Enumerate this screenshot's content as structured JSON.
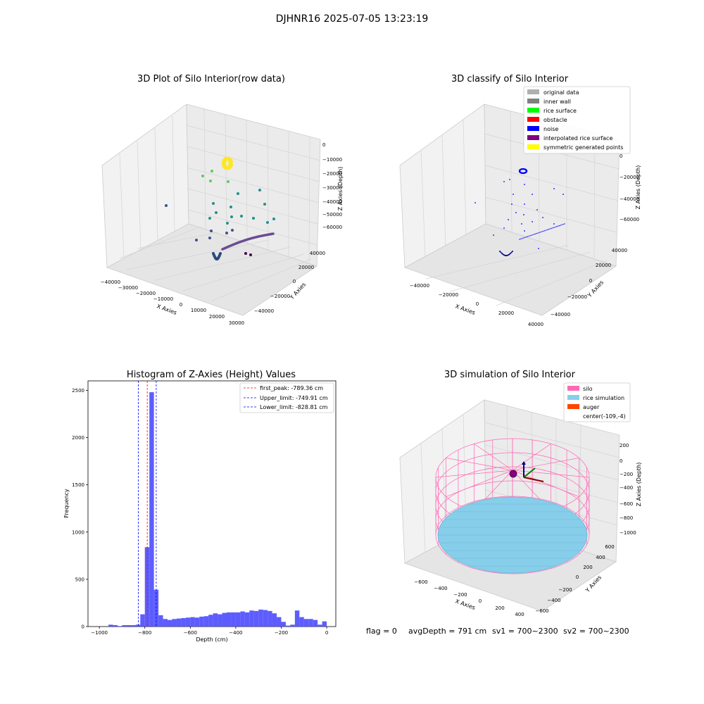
{
  "figure": {
    "suptitle": "DJHNR16 2025-07-05 13:23:19",
    "footer": {
      "flag": "flag = 0",
      "avg_depth": "avgDepth = 791 cm",
      "sv1": "sv1 = 700~2300",
      "sv2": "sv2 = 700~2300"
    }
  },
  "colors": {
    "histogram_bars": "#4b4bff",
    "first_peak_line": "#ff0000",
    "limit_lines": "#0000ff",
    "grid": "#d9d9d9",
    "pane": "#f2f2f2",
    "silo": "#ff69b4",
    "rice": "#87ceeb",
    "auger": "#ff4500"
  },
  "chart_data": [
    {
      "type": "scatter",
      "title": "3D Plot of Silo Interior(row data)",
      "xlabel": "X Axies",
      "ylabel": "Y Axies",
      "zlabel": "Z Axies (Depth)",
      "x_ticks": [
        "−40000",
        "−30000",
        "−20000",
        "−10000",
        "0",
        "10000",
        "20000",
        "30000"
      ],
      "y_ticks": [
        "−40000",
        "−20000",
        "0",
        "20000",
        "40000"
      ],
      "z_ticks": [
        "0",
        "−10000",
        "−20000",
        "−30000",
        "−40000",
        "−50000",
        "−60000"
      ],
      "colormap": "viridis (by depth)"
    },
    {
      "type": "scatter",
      "title": "3D classify of Silo Interior",
      "xlabel": "X Axies",
      "ylabel": "Y Axies",
      "zlabel": "Z Axies (Depth)",
      "x_ticks": [
        "−40000",
        "−20000",
        "0",
        "20000",
        "40000"
      ],
      "y_ticks": [
        "−40000",
        "−20000",
        "0",
        "20000",
        "40000"
      ],
      "z_ticks": [
        "0",
        "−20000",
        "−40000",
        "−60000"
      ],
      "legend": [
        {
          "label": "original data",
          "color": "#b0b0b0"
        },
        {
          "label": "inner wall",
          "color": "#808080"
        },
        {
          "label": "rice surface",
          "color": "#00ff00"
        },
        {
          "label": "obstacle",
          "color": "#ff0000"
        },
        {
          "label": "noise",
          "color": "#0000ff"
        },
        {
          "label": "interpolated rice surface",
          "color": "#800080"
        },
        {
          "label": "symmetric generated points",
          "color": "#ffff00"
        }
      ]
    },
    {
      "type": "bar",
      "title": "Histogram of Z-Axies (Height) Values",
      "xlabel": "Depth (cm)",
      "ylabel": "Frequency",
      "xlim": [
        -1050,
        40
      ],
      "ylim": [
        0,
        2600
      ],
      "x_ticks": [
        -1000,
        -800,
        -600,
        -400,
        -200,
        0
      ],
      "x_tick_labels": [
        "−1000",
        "−800",
        "−600",
        "−400",
        "−200",
        "0"
      ],
      "y_ticks": [
        0,
        500,
        1000,
        1500,
        2000,
        2500
      ],
      "bin_start": -1000,
      "bin_width": 20,
      "values": [
        0,
        0,
        20,
        15,
        5,
        15,
        15,
        15,
        20,
        130,
        840,
        2480,
        390,
        120,
        80,
        70,
        80,
        85,
        90,
        95,
        100,
        95,
        105,
        110,
        125,
        140,
        130,
        145,
        150,
        150,
        150,
        160,
        150,
        170,
        165,
        180,
        175,
        165,
        140,
        100,
        50,
        10,
        20,
        170,
        100,
        80,
        80,
        70,
        20,
        55
      ],
      "lines": [
        {
          "label": "first_peak: -789.36 cm",
          "x": -789.36,
          "color": "#ff0000"
        },
        {
          "label": "Upper_limit: -749.91 cm",
          "x": -749.91,
          "color": "#0000ff"
        },
        {
          "label": "Lower_limit: -828.81 cm",
          "x": -828.81,
          "color": "#0000ff"
        }
      ],
      "legend_position": "top-right"
    },
    {
      "type": "scatter",
      "title": "3D simulation of Silo Interior",
      "xlabel": "X Axies",
      "ylabel": "Y Axies",
      "zlabel": "Z Axies (Depth)",
      "x_ticks": [
        "−600",
        "−400",
        "−200",
        "0",
        "200",
        "400"
      ],
      "y_ticks": [
        "−600",
        "−400",
        "−200",
        "0",
        "200",
        "400",
        "600"
      ],
      "z_ticks": [
        "200",
        "0",
        "−200",
        "−400",
        "−600",
        "−800",
        "−1000"
      ],
      "legend": [
        {
          "label": "silo",
          "color": "#ff69b4"
        },
        {
          "label": "rice simulation",
          "color": "#87ceeb"
        },
        {
          "label": "auger",
          "color": "#ff4500"
        },
        {
          "label": "center(-109,-4)",
          "color": ""
        }
      ]
    }
  ]
}
